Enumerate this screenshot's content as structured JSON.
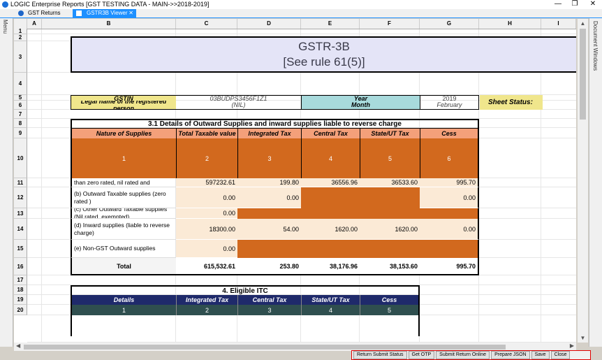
{
  "window": {
    "title": "LOGIC Enterprise Reports  [GST TESTING DATA - MAIN->>2018-2019]",
    "minimize": "—",
    "restore": "❐",
    "close": "✕"
  },
  "tabs": [
    {
      "label": "GST Returns"
    },
    {
      "label": "GSTR3B Viewer",
      "close": "✕"
    }
  ],
  "left_panel_label": "Menu",
  "right_panel_label": "Document Windows",
  "columns": [
    "",
    "A",
    "B",
    "C",
    "D",
    "E",
    "F",
    "G",
    "H",
    "I"
  ],
  "rows": [
    "1",
    "2",
    "3",
    "4",
    "5",
    "6",
    "7",
    "8",
    "9",
    "10",
    "11",
    "12",
    "13",
    "14",
    "15",
    "16",
    "17",
    "18",
    "19",
    "20"
  ],
  "header": {
    "title": "GSTR-3B",
    "subtitle": "[See rule 61(5)]"
  },
  "info": {
    "gstin_label": "GSTIN",
    "name_label": "Legal name of the registered person",
    "gstin_value": "03BUDPS3456F1Z1",
    "name_value": "(NIL)",
    "year_label": "Year",
    "month_label": "Month",
    "year_value": "2019",
    "month_value": "February",
    "sheet_status_label": "Sheet Status:"
  },
  "section31": {
    "title": "3.1 Details of Outward Supplies and inward supplies liable to reverse charge",
    "headers": [
      "Nature of Supplies",
      "Total Taxable value",
      "Integrated Tax",
      "Central Tax",
      "State/UT Tax",
      "Cess"
    ],
    "numbers": [
      "1",
      "2",
      "3",
      "4",
      "5",
      "6"
    ],
    "rows": [
      {
        "label": "(a) Outward Taxable  supplies  (other than zero rated, nil rated and exempted)",
        "values": [
          "597232.61",
          "199.80",
          "36556.96",
          "36533.60",
          "995.70"
        ]
      },
      {
        "label": "(b) Outward Taxable  supplies  (zero rated )",
        "values": [
          "0.00",
          "0.00",
          "",
          "",
          "0.00"
        ]
      },
      {
        "label": "(c) Other Outward Taxable  supplies (Nil rated, exempted)",
        "values": [
          "0.00",
          "",
          "",
          "",
          ""
        ]
      },
      {
        "label": "(d) Inward supplies (liable to reverse charge)",
        "values": [
          "18300.00",
          "54.00",
          "1620.00",
          "1620.00",
          "0.00"
        ]
      },
      {
        "label": "(e) Non-GST Outward supplies",
        "values": [
          "0.00",
          "",
          "",
          "",
          ""
        ]
      }
    ],
    "total": {
      "label": "Total",
      "values": [
        "615,532.61",
        "253.80",
        "38,176.96",
        "38,153.60",
        "995.70"
      ]
    }
  },
  "section4": {
    "title": "4. Eligible ITC",
    "headers": [
      "Details",
      "Integrated Tax",
      "Central Tax",
      "State/UT Tax",
      "Cess"
    ],
    "numbers": [
      "1",
      "2",
      "3",
      "4",
      "5"
    ]
  },
  "buttons": [
    "Return Submit Status",
    "Get OTP",
    "Submit Return Online",
    "Prepare JSON",
    "Save",
    "Close"
  ],
  "colors": {
    "title_bg": "#e4e4f7",
    "label_yellow": "#f0e68c",
    "label_cyan": "#a8dadc",
    "header_salmon": "#f4a07a",
    "number_orange": "#d2691e",
    "value_beige": "#fbead6",
    "disabled_orange": "#d2691e",
    "itc_header": "#1f2a6b",
    "itc_number": "#2f4f4f",
    "accent_blue": "#1e90ff",
    "button_border": "#e00000"
  }
}
